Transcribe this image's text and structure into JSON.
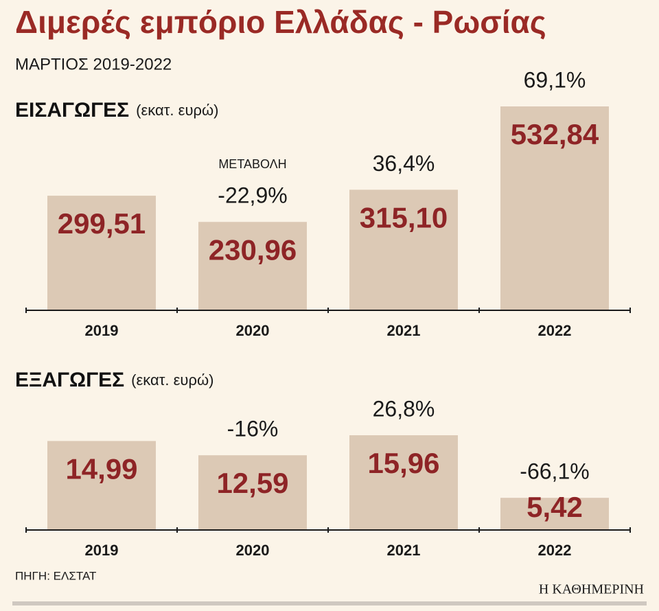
{
  "title": "Διμερές εμπόριο Ελλάδας - Ρωσίας",
  "subtitle": "ΜΑΡΤΙΟΣ 2019-2022",
  "source": "ΠΗΓΗ: ΕΛΣΤΑΤ",
  "brand": "Η ΚΑΘΗΜΕΡΙΝΗ",
  "chart_data": [
    {
      "type": "bar",
      "title": "ΕΙΣΑΓΩΓΕΣ",
      "unit": "(εκατ. ευρώ)",
      "annotation": "ΜΕΤΑΒΟΛΗ",
      "categories": [
        "2019",
        "2020",
        "2021",
        "2022"
      ],
      "values": [
        299.51,
        230.96,
        315.1,
        532.84
      ],
      "value_labels": [
        "299,51",
        "230,96",
        "315,10",
        "532,84"
      ],
      "changes": [
        null,
        "-22,9%",
        "36,4%",
        "69,1%"
      ],
      "color": "#dcc9b5"
    },
    {
      "type": "bar",
      "title": "ΕΞΑΓΩΓΕΣ",
      "unit": "(εκατ. ευρώ)",
      "categories": [
        "2019",
        "2020",
        "2021",
        "2022"
      ],
      "values": [
        14.99,
        12.59,
        15.96,
        5.42
      ],
      "value_labels": [
        "14,99",
        "12,59",
        "15,96",
        "5,42"
      ],
      "changes": [
        null,
        "-16%",
        "26,8%",
        "-66,1%"
      ],
      "color": "#dcc9b5"
    }
  ]
}
